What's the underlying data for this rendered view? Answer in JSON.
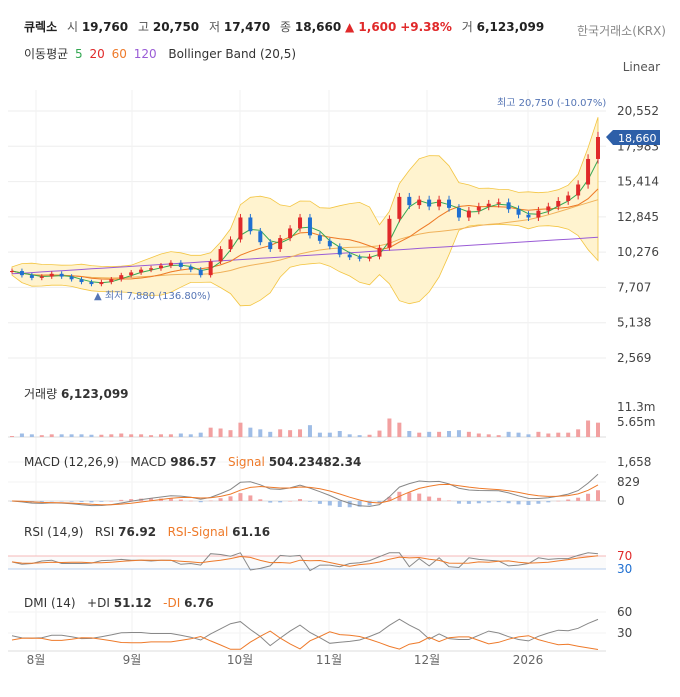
{
  "header": {
    "name": "큐렉소",
    "open_label": "시",
    "open": "19,760",
    "high_label": "고",
    "high": "20,750",
    "low_label": "저",
    "low": "17,470",
    "close_label": "종",
    "close": "18,660",
    "change": "▲ 1,600",
    "change_pct": "+9.38%",
    "vol_label": "거",
    "volume": "6,123,099",
    "exchange": "한국거래소(KRX)"
  },
  "indicators": {
    "ma_label": "이동평균",
    "ma5": "5",
    "ma20": "20",
    "ma60": "60",
    "ma120": "120",
    "bb": "Bollinger Band (20,5)",
    "scale": "Linear"
  },
  "colors": {
    "up": "#e0292a",
    "down": "#1f6fd1",
    "ma5": "#34a853",
    "ma20": "#ee7a2a",
    "ma60": "#f0b25a",
    "ma120": "#9a5cd6",
    "bb_fill": "#fff2cc",
    "bb_line": "#f3c542",
    "rsi": "#888888",
    "signal": "#ee7a2a"
  },
  "price_panel": {
    "y_ticks": [
      "20,552",
      "17,983",
      "15,414",
      "12,845",
      "10,276",
      "7,707",
      "5,138",
      "2,569"
    ],
    "current_price": "18,660",
    "max_label": "최고 20,750 (-10.07%)",
    "min_label": "▲ 최저 7,880 (136.80%)"
  },
  "volume_panel": {
    "title": "거래량",
    "value": "6,123,099",
    "y_ticks": [
      "11.3m",
      "5.65m"
    ]
  },
  "macd_panel": {
    "title": "MACD (12,26,9)",
    "macd_label": "MACD",
    "macd_value": "986.57",
    "signal_label": "Signal",
    "signal_value": "504.23482.34",
    "y_ticks": [
      "1,658",
      "829",
      "0"
    ]
  },
  "rsi_panel": {
    "title": "RSI (14,9)",
    "rsi_label": "RSI",
    "rsi_value": "76.92",
    "signal_label": "RSI-Signal",
    "signal_value": "61.16",
    "y_ticks": [
      "70",
      "30"
    ]
  },
  "dmi_panel": {
    "title": "DMI (14)",
    "pdi_label": "+DI",
    "pdi_value": "51.12",
    "mdi_label": "-DI",
    "mdi_value": "6.76",
    "y_ticks": [
      "60",
      "30"
    ]
  },
  "x_axis": [
    "8월",
    "9월",
    "10월",
    "11월",
    "12월",
    "2026"
  ],
  "chart_data": {
    "type": "candlestick",
    "title": "큐렉소",
    "ylim": [
      2569,
      21500
    ],
    "x": [
      "8월",
      "9월",
      "10월",
      "11월",
      "12월",
      "2026"
    ],
    "close_series": [
      8900,
      8600,
      8400,
      8500,
      8700,
      8500,
      8300,
      8100,
      7950,
      8100,
      8300,
      8600,
      8800,
      9000,
      9100,
      9300,
      9500,
      9200,
      9000,
      8600,
      9600,
      10500,
      11200,
      12800,
      11800,
      11000,
      10500,
      11300,
      12000,
      12800,
      11500,
      11100,
      10700,
      10100,
      9900,
      9800,
      9950,
      10600,
      12700,
      14300,
      13700,
      14100,
      13600,
      14100,
      13500,
      12800,
      13300,
      13600,
      13800,
      13900,
      13400,
      13000,
      12800,
      13300,
      13600,
      14000,
      14400,
      15200,
      17060,
      18660
    ],
    "annotations": {
      "high": "최고 20,750 (-10.07%)",
      "low": "최저 7,880 (136.80%)"
    }
  }
}
